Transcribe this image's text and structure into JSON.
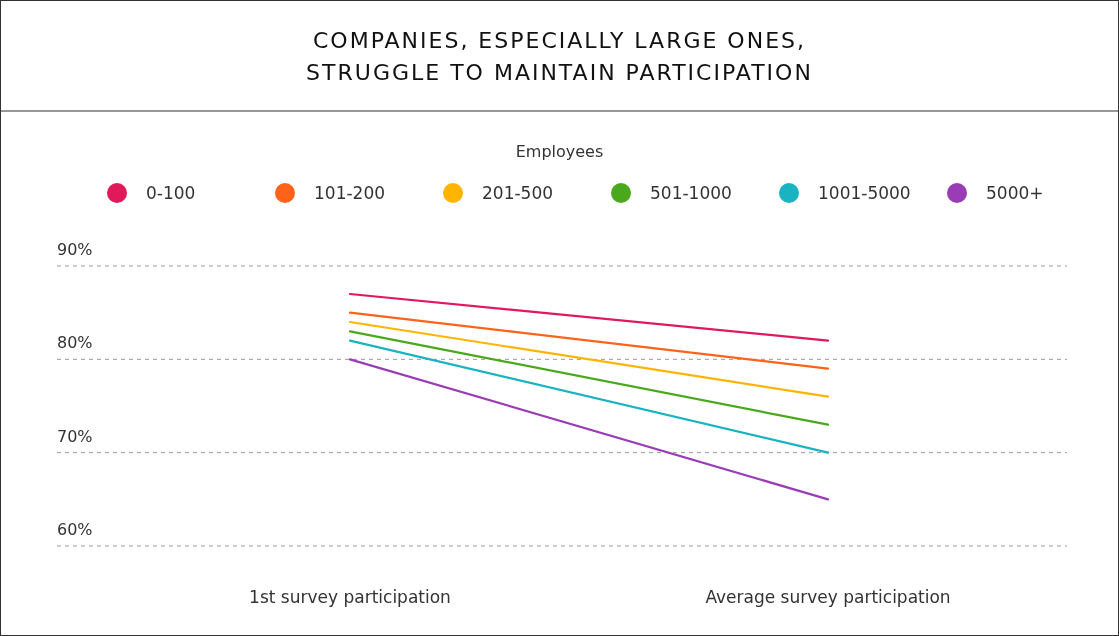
{
  "chart_data": {
    "type": "line",
    "title": "COMPANIES, ESPECIALLY LARGE ONES,\nSTRUGGLE TO MAINTAIN PARTICIPATION",
    "legend_title": "Employees",
    "categories": [
      "1st survey participation",
      "Average survey participation"
    ],
    "series": [
      {
        "name": "0-100",
        "color": "#e0195a",
        "values": [
          87,
          82
        ]
      },
      {
        "name": "101-200",
        "color": "#ff6319",
        "values": [
          85,
          79
        ]
      },
      {
        "name": "201-500",
        "color": "#ffb400",
        "values": [
          84,
          76
        ]
      },
      {
        "name": "501-1000",
        "color": "#4aa81c",
        "values": [
          83,
          73
        ]
      },
      {
        "name": "1001-5000",
        "color": "#1ab3c2",
        "values": [
          82,
          70
        ]
      },
      {
        "name": "5000+",
        "color": "#9b3cb7",
        "values": [
          80,
          65
        ]
      }
    ],
    "ylim": [
      60,
      90
    ],
    "yticks": [
      {
        "value": 60,
        "label": "60%"
      },
      {
        "value": 70,
        "label": "70%"
      },
      {
        "value": 80,
        "label": "80%"
      },
      {
        "value": 90,
        "label": "90%"
      }
    ],
    "grid": "y",
    "legend": "top",
    "marker": "none",
    "line_style": "solid"
  }
}
